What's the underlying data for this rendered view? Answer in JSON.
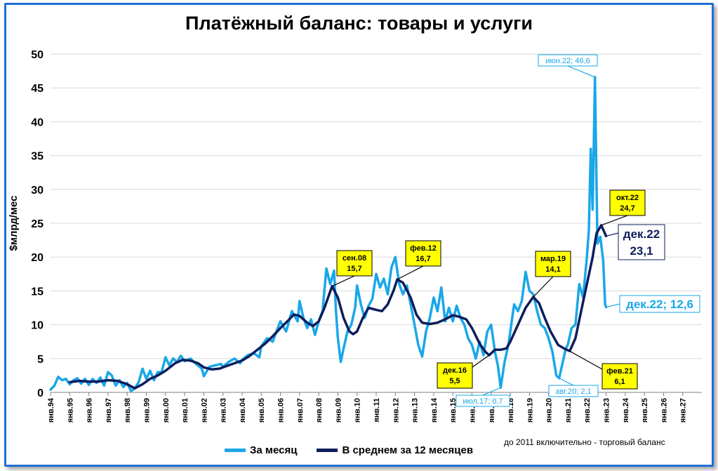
{
  "chart_data": {
    "type": "line",
    "title": "Платёжный баланс: товары и услуги",
    "ylabel": "$млрд/мес",
    "xlabel": "",
    "ylim": [
      0,
      50
    ],
    "y_ticks": [
      0,
      5,
      10,
      15,
      20,
      25,
      30,
      35,
      40,
      45,
      50
    ],
    "x_range": [
      1994,
      2028
    ],
    "x_tick_labels": [
      "янв.94",
      "янв.95",
      "янв.96",
      "янв.97",
      "янв.98",
      "янв.99",
      "янв.00",
      "янв.01",
      "янв.02",
      "янв.03",
      "янв.04",
      "янв.05",
      "янв.06",
      "янв.07",
      "янв.08",
      "янв.09",
      "янв.10",
      "янв.11",
      "янв.12",
      "янв.13",
      "янв.14",
      "янв.15",
      "янв.16",
      "янв.17",
      "янв.18",
      "янв.19",
      "янв.20",
      "янв.21",
      "янв.22",
      "янв.23",
      "янв.24",
      "янв.25",
      "янв.26",
      "янв.27"
    ],
    "grid": true,
    "legend_placement": "bottom",
    "note": "до 2011 включительно - торговый баланс",
    "series": [
      {
        "name": "За месяц",
        "color": "#1aa7e8",
        "points": [
          [
            1994.0,
            0.4
          ],
          [
            1994.2,
            1.0
          ],
          [
            1994.4,
            2.3
          ],
          [
            1994.6,
            1.8
          ],
          [
            1994.8,
            2.0
          ],
          [
            1995.0,
            1.2
          ],
          [
            1995.2,
            1.8
          ],
          [
            1995.4,
            2.1
          ],
          [
            1995.6,
            1.3
          ],
          [
            1995.8,
            2.0
          ],
          [
            1996.0,
            1.1
          ],
          [
            1996.2,
            2.0
          ],
          [
            1996.4,
            1.4
          ],
          [
            1996.6,
            2.2
          ],
          [
            1996.8,
            1.0
          ],
          [
            1997.0,
            3.0
          ],
          [
            1997.2,
            2.5
          ],
          [
            1997.4,
            1.0
          ],
          [
            1997.6,
            1.8
          ],
          [
            1997.8,
            0.8
          ],
          [
            1998.0,
            1.4
          ],
          [
            1998.2,
            0.2
          ],
          [
            1998.4,
            0.6
          ],
          [
            1998.6,
            1.5
          ],
          [
            1998.8,
            3.5
          ],
          [
            1999.0,
            2.0
          ],
          [
            1999.2,
            3.2
          ],
          [
            1999.4,
            1.8
          ],
          [
            1999.6,
            3.0
          ],
          [
            1999.8,
            3.0
          ],
          [
            2000.0,
            5.2
          ],
          [
            2000.2,
            4.0
          ],
          [
            2000.4,
            5.0
          ],
          [
            2000.6,
            4.5
          ],
          [
            2000.8,
            5.4
          ],
          [
            2001.0,
            4.6
          ],
          [
            2001.3,
            5.0
          ],
          [
            2001.6,
            4.2
          ],
          [
            2001.9,
            3.5
          ],
          [
            2002.0,
            2.4
          ],
          [
            2002.3,
            3.8
          ],
          [
            2002.6,
            4.0
          ],
          [
            2002.9,
            4.2
          ],
          [
            2003.0,
            3.8
          ],
          [
            2003.3,
            4.5
          ],
          [
            2003.6,
            5.0
          ],
          [
            2003.9,
            4.3
          ],
          [
            2004.0,
            4.8
          ],
          [
            2004.3,
            5.5
          ],
          [
            2004.6,
            5.8
          ],
          [
            2004.9,
            5.2
          ],
          [
            2005.0,
            6.8
          ],
          [
            2005.3,
            8.0
          ],
          [
            2005.6,
            7.5
          ],
          [
            2005.9,
            9.8
          ],
          [
            2006.0,
            10.5
          ],
          [
            2006.3,
            9.0
          ],
          [
            2006.6,
            12.0
          ],
          [
            2006.9,
            10.5
          ],
          [
            2007.0,
            13.5
          ],
          [
            2007.2,
            11.0
          ],
          [
            2007.4,
            9.5
          ],
          [
            2007.6,
            10.8
          ],
          [
            2007.8,
            8.5
          ],
          [
            2008.0,
            10.5
          ],
          [
            2008.2,
            12.0
          ],
          [
            2008.4,
            18.3
          ],
          [
            2008.6,
            16.0
          ],
          [
            2008.8,
            18.0
          ],
          [
            2008.9,
            12.0
          ],
          [
            2009.0,
            8.0
          ],
          [
            2009.15,
            4.5
          ],
          [
            2009.3,
            6.5
          ],
          [
            2009.5,
            9.0
          ],
          [
            2009.7,
            10.0
          ],
          [
            2009.9,
            12.5
          ],
          [
            2010.0,
            15.8
          ],
          [
            2010.2,
            13.0
          ],
          [
            2010.4,
            11.0
          ],
          [
            2010.6,
            12.8
          ],
          [
            2010.8,
            13.8
          ],
          [
            2011.0,
            17.5
          ],
          [
            2011.2,
            15.5
          ],
          [
            2011.4,
            16.8
          ],
          [
            2011.6,
            14.5
          ],
          [
            2011.8,
            18.5
          ],
          [
            2012.0,
            20.0
          ],
          [
            2012.2,
            16.0
          ],
          [
            2012.4,
            14.5
          ],
          [
            2012.6,
            15.8
          ],
          [
            2012.8,
            13.0
          ],
          [
            2013.0,
            10.0
          ],
          [
            2013.2,
            7.0
          ],
          [
            2013.4,
            5.3
          ],
          [
            2013.6,
            9.0
          ],
          [
            2013.8,
            11.0
          ],
          [
            2014.0,
            14.0
          ],
          [
            2014.2,
            12.0
          ],
          [
            2014.4,
            15.5
          ],
          [
            2014.6,
            10.5
          ],
          [
            2014.8,
            12.5
          ],
          [
            2015.0,
            10.5
          ],
          [
            2015.2,
            12.8
          ],
          [
            2015.4,
            11.0
          ],
          [
            2015.6,
            10.0
          ],
          [
            2015.8,
            8.0
          ],
          [
            2016.0,
            7.0
          ],
          [
            2016.2,
            5.0
          ],
          [
            2016.4,
            7.5
          ],
          [
            2016.6,
            5.5
          ],
          [
            2016.8,
            9.0
          ],
          [
            2017.0,
            10.0
          ],
          [
            2017.2,
            6.0
          ],
          [
            2017.35,
            4.0
          ],
          [
            2017.5,
            0.7
          ],
          [
            2017.7,
            4.5
          ],
          [
            2017.9,
            7.0
          ],
          [
            2018.0,
            9.0
          ],
          [
            2018.2,
            13.0
          ],
          [
            2018.4,
            12.0
          ],
          [
            2018.6,
            13.5
          ],
          [
            2018.8,
            17.8
          ],
          [
            2019.0,
            15.0
          ],
          [
            2019.2,
            14.5
          ],
          [
            2019.4,
            12.0
          ],
          [
            2019.6,
            10.0
          ],
          [
            2019.8,
            9.5
          ],
          [
            2020.0,
            8.0
          ],
          [
            2020.2,
            6.0
          ],
          [
            2020.4,
            2.5
          ],
          [
            2020.55,
            2.1
          ],
          [
            2020.7,
            4.0
          ],
          [
            2020.9,
            6.5
          ],
          [
            2021.0,
            7.0
          ],
          [
            2021.2,
            9.5
          ],
          [
            2021.4,
            10.0
          ],
          [
            2021.6,
            16.0
          ],
          [
            2021.8,
            14.0
          ],
          [
            2022.0,
            20.0
          ],
          [
            2022.1,
            24.0
          ],
          [
            2022.2,
            36.0
          ],
          [
            2022.3,
            27.0
          ],
          [
            2022.42,
            46.6
          ],
          [
            2022.55,
            22.0
          ],
          [
            2022.7,
            23.0
          ],
          [
            2022.85,
            19.5
          ],
          [
            2022.95,
            13.0
          ],
          [
            2023.0,
            12.6
          ]
        ]
      },
      {
        "name": "В среднем за 12 месяцев",
        "color": "#0d1d5c",
        "points": [
          [
            1995.0,
            1.5
          ],
          [
            1995.5,
            1.7
          ],
          [
            1996.0,
            1.6
          ],
          [
            1996.5,
            1.6
          ],
          [
            1997.0,
            1.8
          ],
          [
            1997.5,
            1.7
          ],
          [
            1998.0,
            1.2
          ],
          [
            1998.4,
            0.6
          ],
          [
            1998.8,
            1.2
          ],
          [
            1999.2,
            2.0
          ],
          [
            1999.6,
            2.5
          ],
          [
            2000.0,
            3.2
          ],
          [
            2000.5,
            4.3
          ],
          [
            2000.9,
            4.8
          ],
          [
            2001.3,
            4.7
          ],
          [
            2001.7,
            4.3
          ],
          [
            2002.0,
            3.7
          ],
          [
            2002.4,
            3.4
          ],
          [
            2002.8,
            3.5
          ],
          [
            2003.2,
            3.9
          ],
          [
            2003.6,
            4.3
          ],
          [
            2004.0,
            4.7
          ],
          [
            2004.4,
            5.4
          ],
          [
            2004.8,
            6.3
          ],
          [
            2005.2,
            7.2
          ],
          [
            2005.6,
            8.3
          ],
          [
            2006.0,
            9.5
          ],
          [
            2006.4,
            10.6
          ],
          [
            2006.7,
            11.5
          ],
          [
            2007.0,
            11.3
          ],
          [
            2007.4,
            10.3
          ],
          [
            2007.7,
            9.8
          ],
          [
            2008.0,
            10.5
          ],
          [
            2008.3,
            12.5
          ],
          [
            2008.7,
            15.7
          ],
          [
            2009.0,
            14.0
          ],
          [
            2009.3,
            11.0
          ],
          [
            2009.6,
            9.0
          ],
          [
            2009.8,
            8.6
          ],
          [
            2010.0,
            9.0
          ],
          [
            2010.3,
            11.0
          ],
          [
            2010.6,
            12.5
          ],
          [
            2011.0,
            12.2
          ],
          [
            2011.3,
            12.0
          ],
          [
            2011.6,
            13.0
          ],
          [
            2011.9,
            15.0
          ],
          [
            2012.1,
            16.7
          ],
          [
            2012.4,
            16.2
          ],
          [
            2012.8,
            14.0
          ],
          [
            2013.1,
            11.5
          ],
          [
            2013.4,
            10.3
          ],
          [
            2013.8,
            10.1
          ],
          [
            2014.2,
            10.3
          ],
          [
            2014.6,
            10.8
          ],
          [
            2015.0,
            11.4
          ],
          [
            2015.3,
            11.2
          ],
          [
            2015.7,
            10.8
          ],
          [
            2016.0,
            9.5
          ],
          [
            2016.4,
            7.2
          ],
          [
            2016.7,
            6.0
          ],
          [
            2016.9,
            5.5
          ],
          [
            2017.2,
            6.3
          ],
          [
            2017.5,
            6.3
          ],
          [
            2017.8,
            6.5
          ],
          [
            2018.0,
            7.5
          ],
          [
            2018.4,
            10.0
          ],
          [
            2018.8,
            12.5
          ],
          [
            2019.2,
            14.1
          ],
          [
            2019.5,
            13.2
          ],
          [
            2019.8,
            11.0
          ],
          [
            2020.1,
            9.0
          ],
          [
            2020.5,
            7.0
          ],
          [
            2020.8,
            6.5
          ],
          [
            2021.1,
            6.1
          ],
          [
            2021.4,
            8.0
          ],
          [
            2021.7,
            12.0
          ],
          [
            2022.0,
            16.0
          ],
          [
            2022.3,
            20.0
          ],
          [
            2022.5,
            23.5
          ],
          [
            2022.75,
            24.7
          ],
          [
            2023.0,
            23.1
          ]
        ]
      }
    ],
    "annotations": [
      {
        "label": "сен.08",
        "value": "15,7",
        "style": "yellow",
        "x": 2008.7,
        "y": 15.7
      },
      {
        "label": "фев.12",
        "value": "16,7",
        "style": "yellow",
        "x": 2012.1,
        "y": 16.7
      },
      {
        "label": "мар.19",
        "value": "14,1",
        "style": "yellow",
        "x": 2019.2,
        "y": 14.1
      },
      {
        "label": "окт.22",
        "value": "24,7",
        "style": "yellow",
        "x": 2022.75,
        "y": 24.7
      },
      {
        "label": "дек.16",
        "value": "5,5",
        "style": "yellow",
        "x": 2016.9,
        "y": 5.5
      },
      {
        "label": "фев.21",
        "value": "6,1",
        "style": "yellow",
        "x": 2021.1,
        "y": 6.1
      },
      {
        "label": "июн.22; 46,6",
        "style": "cyan",
        "x": 2022.42,
        "y": 46.6
      },
      {
        "label": "июл.17; 0,7",
        "style": "cyan",
        "x": 2017.5,
        "y": 0.7
      },
      {
        "label": "авг.20; 2,1",
        "style": "cyan",
        "x": 2020.55,
        "y": 2.1
      },
      {
        "label": "дек.22; 12,6",
        "style": "cyan-large",
        "x": 2023.0,
        "y": 12.6
      },
      {
        "label": "дек.22",
        "value": "23,1",
        "style": "navy-large",
        "x": 2023.0,
        "y": 23.1
      }
    ]
  }
}
